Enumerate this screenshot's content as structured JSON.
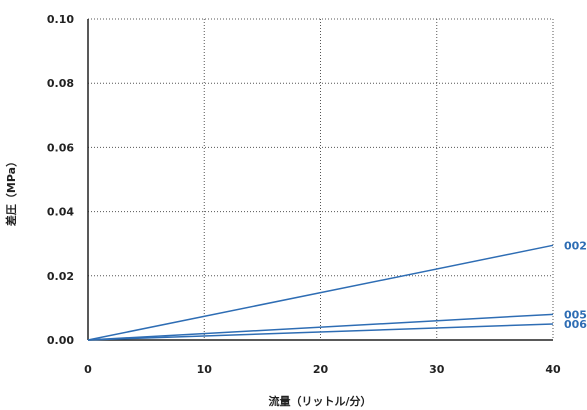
{
  "chart_data": {
    "type": "line",
    "xlabel": "流量（リットル/分）",
    "ylabel": "差圧（MPa）",
    "xlim": [
      0,
      40
    ],
    "ylim": [
      0,
      0.1
    ],
    "x_ticks": [
      "0",
      "10",
      "20",
      "30",
      "40"
    ],
    "y_ticks": [
      "0.00",
      "0.02",
      "0.04",
      "0.06",
      "0.08",
      "0.10"
    ],
    "grid": true,
    "line_color": "#2e6db4",
    "series": [
      {
        "name": "002",
        "x": [
          0,
          40
        ],
        "y": [
          0,
          0.0295
        ]
      },
      {
        "name": "005",
        "x": [
          0,
          40
        ],
        "y": [
          0,
          0.008
        ]
      },
      {
        "name": "006",
        "x": [
          0,
          40
        ],
        "y": [
          0,
          0.005
        ]
      }
    ]
  }
}
